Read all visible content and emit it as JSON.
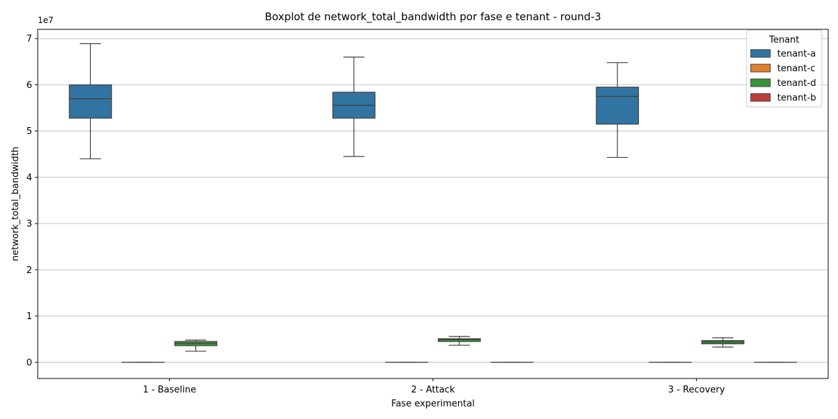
{
  "chart_data": {
    "type": "boxplot",
    "title": "Boxplot de network_total_bandwidth por fase e tenant - round-3",
    "xlabel": "Fase experimental",
    "ylabel": "network_total_bandwidth",
    "y_multiplier": "1e7",
    "ylim": [
      -3500000,
      72000000
    ],
    "yticks": [
      0,
      10000000,
      20000000,
      30000000,
      40000000,
      50000000,
      60000000,
      70000000
    ],
    "ytick_labels": [
      "0",
      "1",
      "2",
      "3",
      "4",
      "5",
      "6",
      "7"
    ],
    "grid": "y-major",
    "categories": [
      "1 - Baseline",
      "2 - Attack",
      "3 - Recovery"
    ],
    "legend": {
      "title": "Tenant",
      "placement": "top-right",
      "entries": [
        "tenant-a",
        "tenant-c",
        "tenant-d",
        "tenant-b"
      ]
    },
    "series": [
      {
        "name": "tenant-a",
        "color": "#3274a1",
        "boxes": [
          {
            "category": "1 - Baseline",
            "whislo": 44000000,
            "q1": 52800000,
            "med": 57000000,
            "q3": 60000000,
            "whishi": 68900000
          },
          {
            "category": "2 - Attack",
            "whislo": 44500000,
            "q1": 52800000,
            "med": 55600000,
            "q3": 58400000,
            "whishi": 66000000
          },
          {
            "category": "3 - Recovery",
            "whislo": 44300000,
            "q1": 51500000,
            "med": 57500000,
            "q3": 59500000,
            "whishi": 64800000
          }
        ]
      },
      {
        "name": "tenant-c",
        "color": "#e1812c",
        "boxes": [
          {
            "category": "1 - Baseline",
            "whislo": 0,
            "q1": 0,
            "med": 0,
            "q3": 0,
            "whishi": 0
          },
          {
            "category": "2 - Attack",
            "whislo": 0,
            "q1": 0,
            "med": 0,
            "q3": 0,
            "whishi": 0
          },
          {
            "category": "3 - Recovery",
            "whislo": 0,
            "q1": 0,
            "med": 0,
            "q3": 0,
            "whishi": 0
          }
        ]
      },
      {
        "name": "tenant-d",
        "color": "#3a923a",
        "boxes": [
          {
            "category": "1 - Baseline",
            "whislo": 2400000,
            "q1": 3600000,
            "med": 4100000,
            "q3": 4500000,
            "whishi": 4800000
          },
          {
            "category": "2 - Attack",
            "whislo": 3700000,
            "q1": 4500000,
            "med": 4900000,
            "q3": 5100000,
            "whishi": 5600000
          },
          {
            "category": "3 - Recovery",
            "whislo": 3300000,
            "q1": 4000000,
            "med": 4400000,
            "q3": 4700000,
            "whishi": 5300000
          }
        ]
      },
      {
        "name": "tenant-b",
        "color": "#c03d3e",
        "boxes": [
          {
            "category": "1 - Baseline",
            "whislo": null,
            "q1": null,
            "med": null,
            "q3": null,
            "whishi": null
          },
          {
            "category": "2 - Attack",
            "whislo": 0,
            "q1": 0,
            "med": 0,
            "q3": 0,
            "whishi": 0
          },
          {
            "category": "3 - Recovery",
            "whislo": 0,
            "q1": 0,
            "med": 0,
            "q3": 0,
            "whishi": 0
          }
        ]
      }
    ]
  }
}
